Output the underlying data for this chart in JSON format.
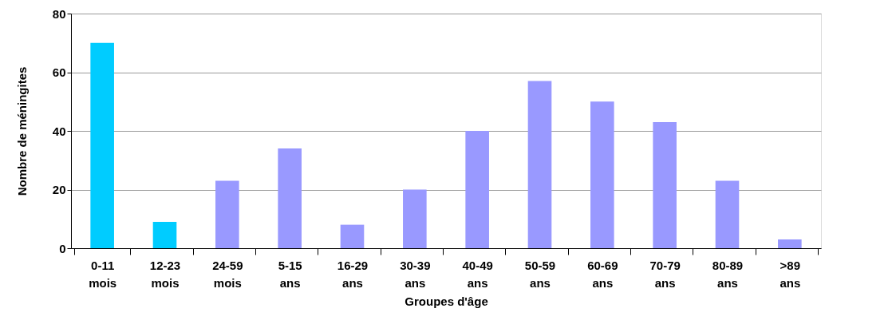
{
  "chart_data": {
    "type": "bar",
    "xlabel": "Groupes d'âge",
    "ylabel": "Nombre de méningites",
    "categories": [
      "0-11 mois",
      "12-23 mois",
      "24-59 mois",
      "5-15 ans",
      "16-29 ans",
      "30-39 ans",
      "40-49 ans",
      "50-59 ans",
      "60-69 ans",
      "70-79 ans",
      "80-89 ans",
      ">89 ans"
    ],
    "values": [
      70,
      9,
      23,
      34,
      8,
      20,
      40,
      57,
      50,
      43,
      23,
      3
    ],
    "colors": [
      "#00ccff",
      "#00ccff",
      "#9999ff",
      "#9999ff",
      "#9999ff",
      "#9999ff",
      "#9999ff",
      "#9999ff",
      "#9999ff",
      "#9999ff",
      "#9999ff",
      "#9999ff"
    ],
    "ylim": [
      0,
      80
    ],
    "yticks": [
      0,
      20,
      40,
      60,
      80
    ],
    "grid": "y"
  }
}
